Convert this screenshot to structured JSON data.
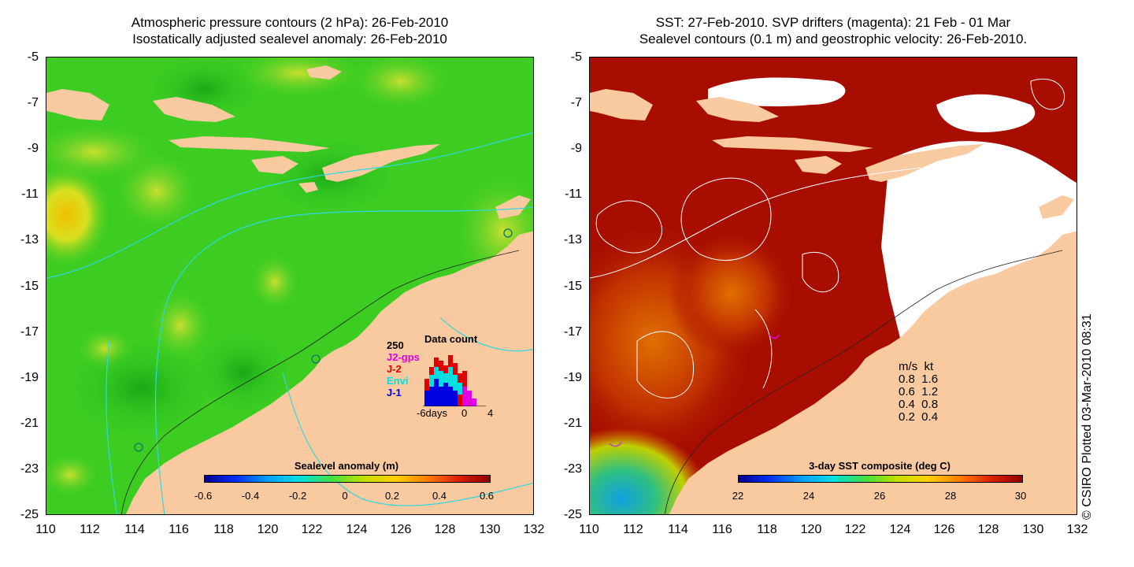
{
  "left_panel": {
    "title_line1": "Atmospheric pressure contours (2 hPa): 26-Feb-2010",
    "title_line2": "Isostatically adjusted sealevel anomaly: 26-Feb-2010",
    "colorbar_title": "Sealevel anomaly (m)",
    "colorbar_ticks": [
      "-0.6",
      "-0.4",
      "-0.2",
      "0",
      "0.2",
      "0.4",
      "0.6"
    ],
    "histogram": {
      "title": "Data count",
      "ymax_label": "250",
      "legend": [
        {
          "label": "J2-gps",
          "color": "#e000e0"
        },
        {
          "label": "J-2",
          "color": "#e00000"
        },
        {
          "label": "Envi",
          "color": "#00e0e0"
        },
        {
          "label": "J-1",
          "color": "#0000e0"
        }
      ],
      "xticks": [
        "-6days",
        "0",
        "4"
      ]
    }
  },
  "right_panel": {
    "title_line1": "SST: 27-Feb-2010. SVP drifters (magenta): 21 Feb - 01 Mar",
    "title_line2": "Sealevel contours (0.1 m) and geostrophic velocity: 26-Feb-2010.",
    "colorbar_title": "3-day SST composite (deg C)",
    "colorbar_ticks": [
      "22",
      "24",
      "26",
      "28",
      "30"
    ],
    "velocity_legend": {
      "header": "m/s  kt",
      "rows": [
        "0.8  1.6",
        "0.6  1.2",
        "0.4  0.8",
        "0.2  0.4"
      ]
    }
  },
  "axes": {
    "y_ticks": [
      "-5",
      "-7",
      "-9",
      "-11",
      "-13",
      "-15",
      "-17",
      "-19",
      "-21",
      "-23",
      "-25"
    ],
    "x_ticks": [
      "110",
      "112",
      "114",
      "116",
      "118",
      "120",
      "122",
      "124",
      "126",
      "128",
      "130",
      "132"
    ]
  },
  "credit": "© CSIRO Plotted 03-Mar-2010 08:31",
  "colors": {
    "land": "#f9c9a0",
    "anomaly_base": "#33cc22",
    "sst_hot": "#a80e00",
    "contour_cyan": "#30d8e0"
  }
}
